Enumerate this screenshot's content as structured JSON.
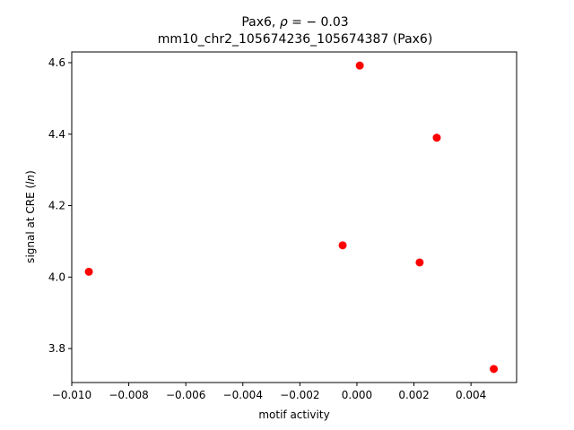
{
  "chart_data": {
    "type": "scatter",
    "title_line1_prefix": "Pax6, ",
    "title_line1_rho": "ρ",
    "title_line1_suffix": " = − 0.03",
    "title_line2": "mm10_chr2_105674236_105674387 (Pax6)",
    "xlabel": "motif activity",
    "ylabel_prefix": "signal at CRE (",
    "ylabel_italic": "ln",
    "ylabel_suffix": ")",
    "xlim": [
      -0.01,
      0.0056
    ],
    "ylim": [
      3.705,
      4.63
    ],
    "xticks": [
      -0.01,
      -0.008,
      -0.006,
      -0.004,
      -0.002,
      0.0,
      0.002,
      0.004
    ],
    "xtick_labels": [
      "−0.010",
      "−0.008",
      "−0.006",
      "−0.004",
      "−0.002",
      "0.000",
      "0.002",
      "0.004"
    ],
    "yticks": [
      3.8,
      4.0,
      4.2,
      4.4,
      4.6
    ],
    "ytick_labels": [
      "3.8",
      "4.0",
      "4.2",
      "4.4",
      "4.6"
    ],
    "grid": false,
    "marker_color": "#ff0000",
    "points": [
      {
        "x": -0.0094,
        "y": 4.015
      },
      {
        "x": -0.0005,
        "y": 4.089
      },
      {
        "x": 0.0001,
        "y": 4.592
      },
      {
        "x": 0.0022,
        "y": 4.041
      },
      {
        "x": 0.0028,
        "y": 4.39
      },
      {
        "x": 0.0048,
        "y": 3.743
      }
    ]
  }
}
